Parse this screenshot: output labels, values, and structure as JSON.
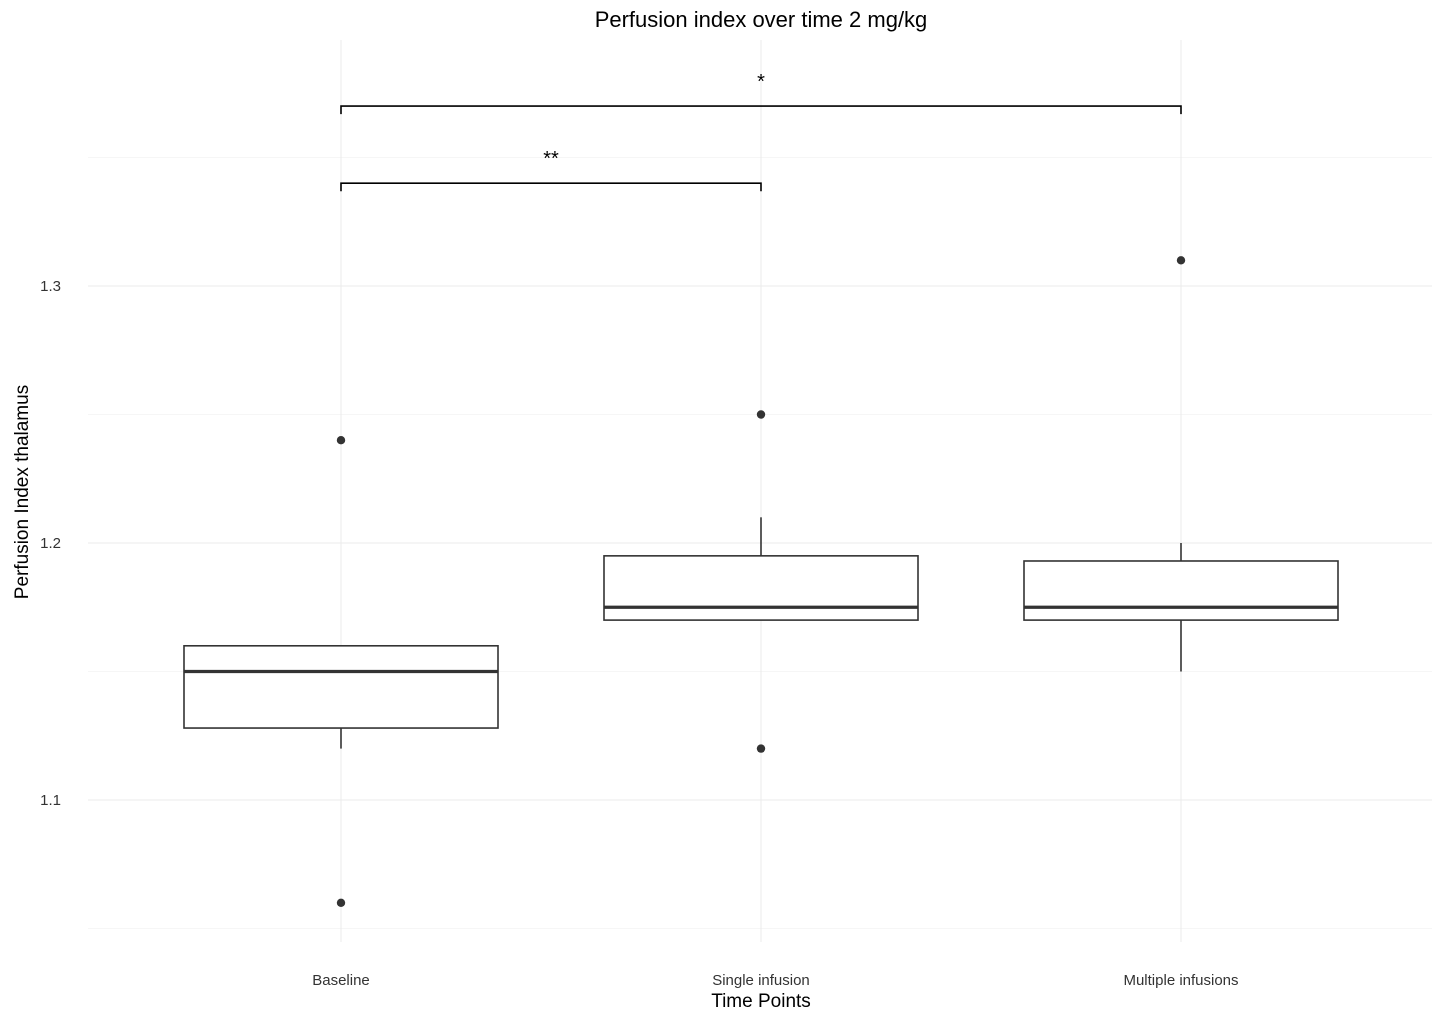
{
  "chart_data": {
    "type": "box",
    "title": "Perfusion index over time 2 mg/kg",
    "xlabel": "Time Points",
    "ylabel": "Perfusion Index thalamus",
    "categories": [
      "Baseline",
      "Single infusion",
      "Multiple infusions"
    ],
    "ylim": [
      1.045,
      1.395
    ],
    "y_ticks": [
      1.1,
      1.2,
      1.3
    ],
    "y_tick_labels": [
      "1.1",
      "1.2",
      "1.3"
    ],
    "y_minor_ticks": [
      1.05,
      1.15,
      1.25,
      1.35
    ],
    "grid": true,
    "boxes": [
      {
        "category": "Baseline",
        "whisker_low": 1.12,
        "q1": 1.128,
        "median": 1.15,
        "q3": 1.16,
        "whisker_high": 1.16,
        "outliers": [
          1.24,
          1.06
        ]
      },
      {
        "category": "Single infusion",
        "whisker_low": 1.17,
        "q1": 1.17,
        "median": 1.175,
        "q3": 1.195,
        "whisker_high": 1.21,
        "outliers": [
          1.25,
          1.12
        ]
      },
      {
        "category": "Multiple infusions",
        "whisker_low": 1.15,
        "q1": 1.17,
        "median": 1.175,
        "q3": 1.193,
        "whisker_high": 1.2,
        "outliers": [
          1.31
        ]
      }
    ],
    "significance": [
      {
        "from": "Baseline",
        "to": "Single infusion",
        "label": "**",
        "y": 1.34
      },
      {
        "from": "Baseline",
        "to": "Multiple infusions",
        "label": "*",
        "y": 1.37
      }
    ]
  }
}
